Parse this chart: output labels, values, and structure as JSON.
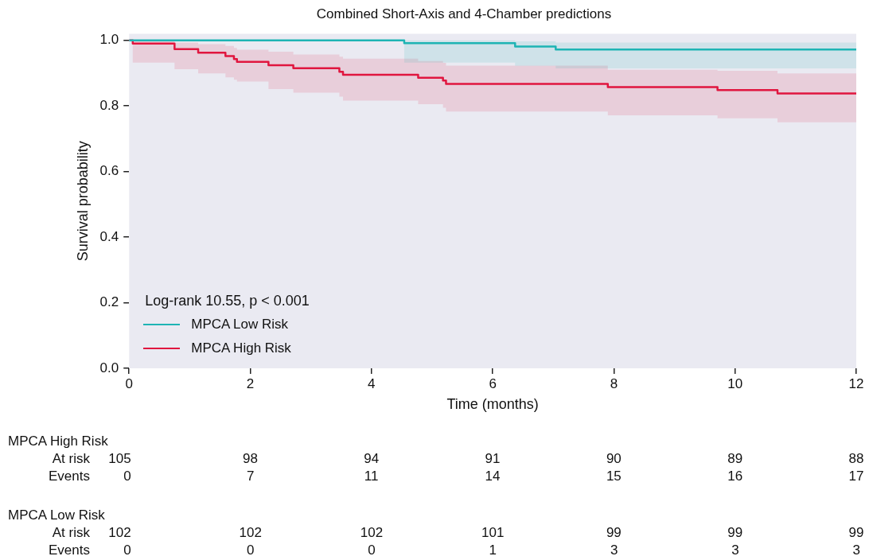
{
  "chart_data": {
    "type": "step",
    "title": "Combined Short-Axis and 4-Chamber predictions",
    "xlabel": "Time (months)",
    "ylabel": "Survival probability",
    "legend_title": "Log-rank 10.55, p < 0.001",
    "legend": "bottom left",
    "grid": false,
    "xlim": [
      0,
      12
    ],
    "xticks": [
      0,
      2,
      4,
      6,
      8,
      10,
      12
    ],
    "ylim": [
      0,
      1.02
    ],
    "yticks": [
      {
        "value": 0,
        "label": "0.0"
      },
      {
        "value": 0.2,
        "label": "0.2"
      },
      {
        "value": 0.4,
        "label": "0.4"
      },
      {
        "value": 0.6,
        "label": "0.6"
      },
      {
        "value": 0.8,
        "label": "0.8"
      },
      {
        "value": 1,
        "label": "1.0"
      }
    ],
    "series": [
      {
        "name": "MPCA Low Risk",
        "color": "#1eb4b4",
        "x": [
          0,
          4.54,
          6.37,
          7.04,
          12
        ],
        "values": [
          1,
          0.991,
          0.981,
          0.972,
          0.972
        ],
        "upper": [
          1,
          1,
          0.997,
          0.993,
          0.993
        ],
        "lower": [
          1,
          0.932,
          0.922,
          0.914,
          0.914
        ]
      },
      {
        "name": "MPCA High Risk",
        "color": "#e0163f",
        "x": [
          0,
          0.06,
          0.75,
          1.14,
          1.59,
          1.73,
          1.78,
          2.3,
          2.71,
          3.47,
          3.53,
          4.77,
          5.18,
          5.23,
          7.9,
          9.71,
          10.7,
          12
        ],
        "values": [
          1,
          0.99,
          0.973,
          0.962,
          0.952,
          0.943,
          0.934,
          0.924,
          0.915,
          0.904,
          0.895,
          0.886,
          0.877,
          0.867,
          0.857,
          0.848,
          0.838,
          0.838
        ],
        "upper": [
          1,
          1,
          0.993,
          0.988,
          0.983,
          0.977,
          0.971,
          0.965,
          0.957,
          0.95,
          0.944,
          0.937,
          0.931,
          0.923,
          0.91,
          0.907,
          0.899,
          0.899
        ],
        "lower": [
          1,
          0.932,
          0.912,
          0.899,
          0.887,
          0.88,
          0.874,
          0.851,
          0.84,
          0.828,
          0.816,
          0.805,
          0.794,
          0.783,
          0.771,
          0.762,
          0.75,
          0.75
        ]
      }
    ],
    "annotations": [
      "MPCA High Risk",
      "At risk",
      "105",
      "98",
      "94",
      "91",
      "90",
      "89",
      "88",
      "Events",
      "0",
      "7",
      "11",
      "14",
      "15",
      "16",
      "17",
      "MPCA Low Risk",
      "At risk",
      "102",
      "102",
      "102",
      "101",
      "99",
      "99",
      "99",
      "Events",
      "0",
      "0",
      "0",
      "1",
      "3",
      "3",
      "3"
    ]
  }
}
